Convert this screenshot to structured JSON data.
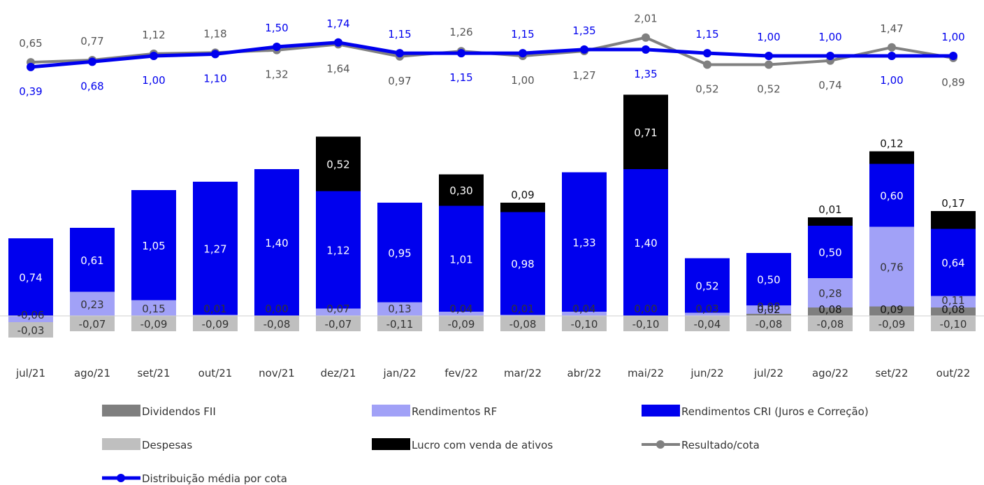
{
  "chart_data": {
    "type": "bar",
    "stacked": true,
    "grid": false,
    "legend_position": "bottom",
    "categories": [
      "jul/21",
      "ago/21",
      "set/21",
      "out/21",
      "nov/21",
      "dez/21",
      "jan/22",
      "fev/22",
      "mar/22",
      "abr/22",
      "mai/22",
      "jun/22",
      "jul/22",
      "ago/22",
      "set/22",
      "out/22"
    ],
    "bar_series": [
      {
        "key": "div",
        "name": "Dividendos FII",
        "color": "#7f7f7f",
        "values": [
          0,
          0,
          0,
          0,
          0,
          0,
          0,
          0,
          0,
          0,
          0,
          0,
          0.02,
          0.08,
          0.09,
          0.08
        ],
        "labels": [
          "",
          "",
          "",
          "",
          "",
          "",
          "",
          "",
          "",
          "",
          "",
          "",
          "0,02",
          "0,08",
          "0,09",
          "0,08"
        ]
      },
      {
        "key": "rf",
        "name": "Rendimentos RF",
        "color": "#a1a1f7",
        "values": [
          -0.06,
          0.23,
          0.15,
          0.01,
          0.0,
          0.07,
          0.13,
          0.04,
          0.01,
          0.04,
          0.0,
          0.03,
          0.08,
          0.28,
          0.76,
          0.11
        ],
        "labels": [
          "-0,06",
          "0,23",
          "0,15",
          "0,01",
          "0,00",
          "0,07",
          "0,13",
          "0,04",
          "0,01",
          "0,04",
          "0,00",
          "0,03",
          "0,08",
          "0,28",
          "0,76",
          "0,11"
        ]
      },
      {
        "key": "cri",
        "name": "Rendimentos CRI (Juros e Correção)",
        "color": "#0000ee",
        "values": [
          0.74,
          0.61,
          1.05,
          1.27,
          1.4,
          1.12,
          0.95,
          1.01,
          0.98,
          1.33,
          1.4,
          0.52,
          0.5,
          0.5,
          0.6,
          0.64
        ],
        "labels": [
          "0,74",
          "0,61",
          "1,05",
          "1,27",
          "1,40",
          "1,12",
          "0,95",
          "1,01",
          "0,98",
          "1,33",
          "1,40",
          "0,52",
          "0,50",
          "0,50",
          "0,60",
          "0,64"
        ]
      },
      {
        "key": "lucro",
        "name": "Lucro com venda de ativos",
        "color": "#000000",
        "values": [
          0,
          0,
          0,
          0,
          0,
          0.52,
          0,
          0.3,
          0.09,
          0,
          0.71,
          0,
          0,
          0.01,
          0.12,
          0.17
        ],
        "labels": [
          "",
          "",
          "",
          "",
          "",
          "0,52",
          "",
          "0,30",
          "0,09",
          "",
          "0,71",
          "",
          "",
          "0,01",
          "0,12",
          "0,17"
        ]
      },
      {
        "key": "desp",
        "name": "Despesas",
        "color": "#bfbfbf",
        "values": [
          -0.03,
          -0.07,
          -0.09,
          -0.09,
          -0.08,
          -0.07,
          -0.11,
          -0.09,
          -0.08,
          -0.1,
          -0.1,
          -0.04,
          -0.08,
          -0.08,
          -0.09,
          -0.1
        ],
        "labels": [
          "-0,03",
          "-0,07",
          "-0,09",
          "-0,09",
          "-0,08",
          "-0,07",
          "-0,11",
          "-0,09",
          "-0,08",
          "-0,10",
          "-0,10",
          "-0,04",
          "-0,08",
          "-0,08",
          "-0,09",
          "-0,10"
        ]
      }
    ],
    "line_series": [
      {
        "key": "resultado",
        "name": "Resultado/cota",
        "color": "#808080",
        "values": [
          0.65,
          0.77,
          1.12,
          1.18,
          1.32,
          1.64,
          0.97,
          1.26,
          1.0,
          1.27,
          2.01,
          0.52,
          0.52,
          0.74,
          1.47,
          0.89
        ],
        "labels": [
          "0,65",
          "0,77",
          "1,12",
          "1,18",
          "1,32",
          "1,64",
          "0,97",
          "1,26",
          "1,00",
          "1,27",
          "2,01",
          "0,52",
          "0,52",
          "0,74",
          "1,47",
          "0,89"
        ]
      },
      {
        "key": "distribuicao",
        "name": "Distribuição média por cota",
        "color": "#0000ee",
        "values": [
          0.39,
          0.68,
          1.0,
          1.1,
          1.5,
          1.74,
          1.15,
          1.15,
          1.15,
          1.35,
          1.35,
          1.15,
          1.0,
          1.0,
          1.0,
          1.0
        ],
        "labels": [
          "0,39",
          "0,68",
          "1,00",
          "1,10",
          "1,50",
          "1,74",
          "1,15",
          "1,15",
          "1,15",
          "1,35",
          "1,35",
          "1,15",
          "1,00",
          "1,00",
          "1,00",
          "1,00"
        ]
      }
    ],
    "legend": [
      {
        "key": "div",
        "label": "Dividendos FII",
        "kind": "box",
        "color": "#7f7f7f"
      },
      {
        "key": "rf",
        "label": "Rendimentos RF",
        "kind": "box",
        "color": "#a1a1f7"
      },
      {
        "key": "cri",
        "label": "Rendimentos CRI (Juros e Correção)",
        "kind": "box",
        "color": "#0000ee"
      },
      {
        "key": "desp",
        "label": "Despesas",
        "kind": "box",
        "color": "#bfbfbf"
      },
      {
        "key": "lucro",
        "label": "Lucro com venda de ativos",
        "kind": "box",
        "color": "#000000"
      },
      {
        "key": "resultado",
        "label": "Resultado/cota",
        "kind": "line",
        "color": "#808080"
      },
      {
        "key": "distribuicao",
        "label": "Distribuição média por cota",
        "kind": "line",
        "color": "#0000ee"
      }
    ]
  }
}
